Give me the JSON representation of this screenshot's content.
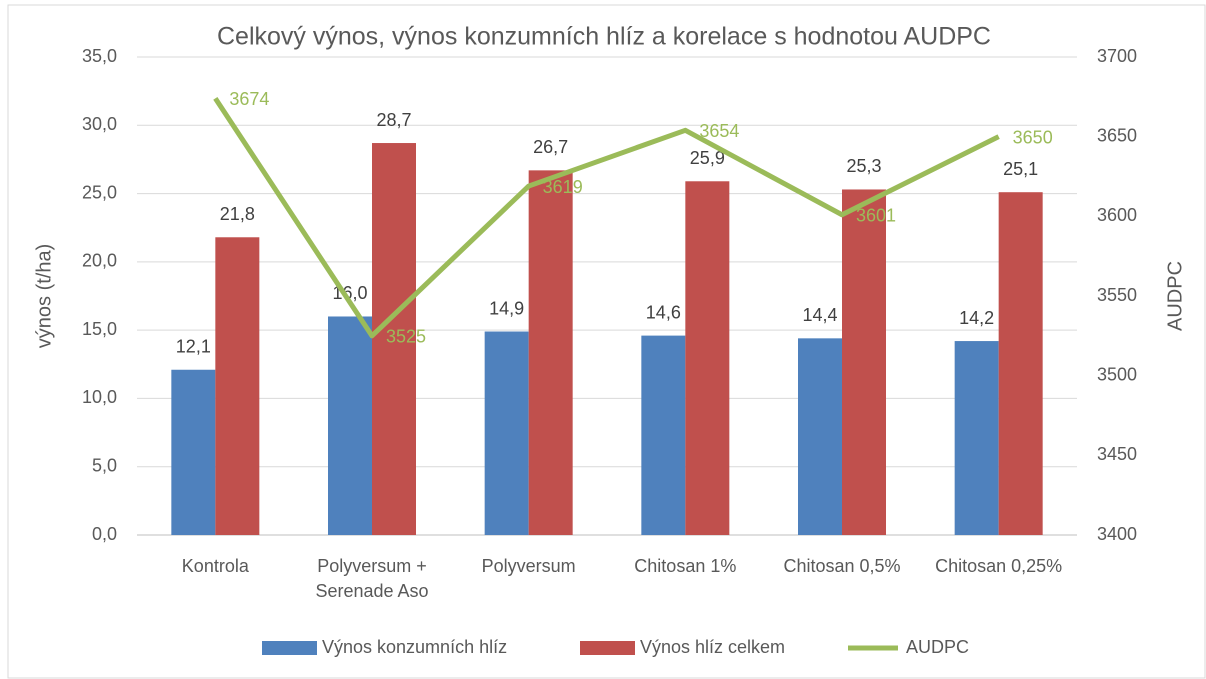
{
  "chart_data": {
    "type": "bar",
    "title": "Celkový výnos, výnos konzumních hlíz a korelace s hodnotou AUDPC",
    "categories": [
      "Kontrola",
      "Polyversum + Serenade Aso",
      "Polyversum",
      "Chitosan 1%",
      "Chitosan 0,5%",
      "Chitosan 0,25%"
    ],
    "series": [
      {
        "name": "Výnos konzumních hlíz",
        "type": "bar",
        "color": "#4f81bd",
        "values": [
          12.1,
          16.0,
          14.9,
          14.6,
          14.4,
          14.2
        ],
        "value_labels": [
          "12,1",
          "16,0",
          "14,9",
          "14,6",
          "14,4",
          "14,2"
        ]
      },
      {
        "name": "Výnos hlíz celkem",
        "type": "bar",
        "color": "#c0504d",
        "values": [
          21.8,
          28.7,
          26.7,
          25.9,
          25.3,
          25.1
        ],
        "value_labels": [
          "21,8",
          "28,7",
          "26,7",
          "25,9",
          "25,3",
          "25,1"
        ]
      },
      {
        "name": "AUDPC",
        "type": "line",
        "axis": "y2",
        "color": "#9bbb59",
        "values": [
          3674,
          3525,
          3619,
          3654,
          3601,
          3650
        ]
      }
    ],
    "ylabel": "výnos (t/ha)",
    "y2label": "AUDPC",
    "ylim": [
      0,
      35
    ],
    "yticks": [
      {
        "value": 0,
        "label": "0,0"
      },
      {
        "value": 5,
        "label": "5,0"
      },
      {
        "value": 10,
        "label": "10,0"
      },
      {
        "value": 15,
        "label": "15,0"
      },
      {
        "value": 20,
        "label": "20,0"
      },
      {
        "value": 25,
        "label": "25,0"
      },
      {
        "value": 30,
        "label": "30,0"
      },
      {
        "value": 35,
        "label": "35,0"
      }
    ],
    "y2lim": [
      3400,
      3700
    ],
    "y2ticks": [
      3400,
      3450,
      3500,
      3550,
      3600,
      3650,
      3700
    ],
    "grid": true,
    "legend": "bottom"
  }
}
